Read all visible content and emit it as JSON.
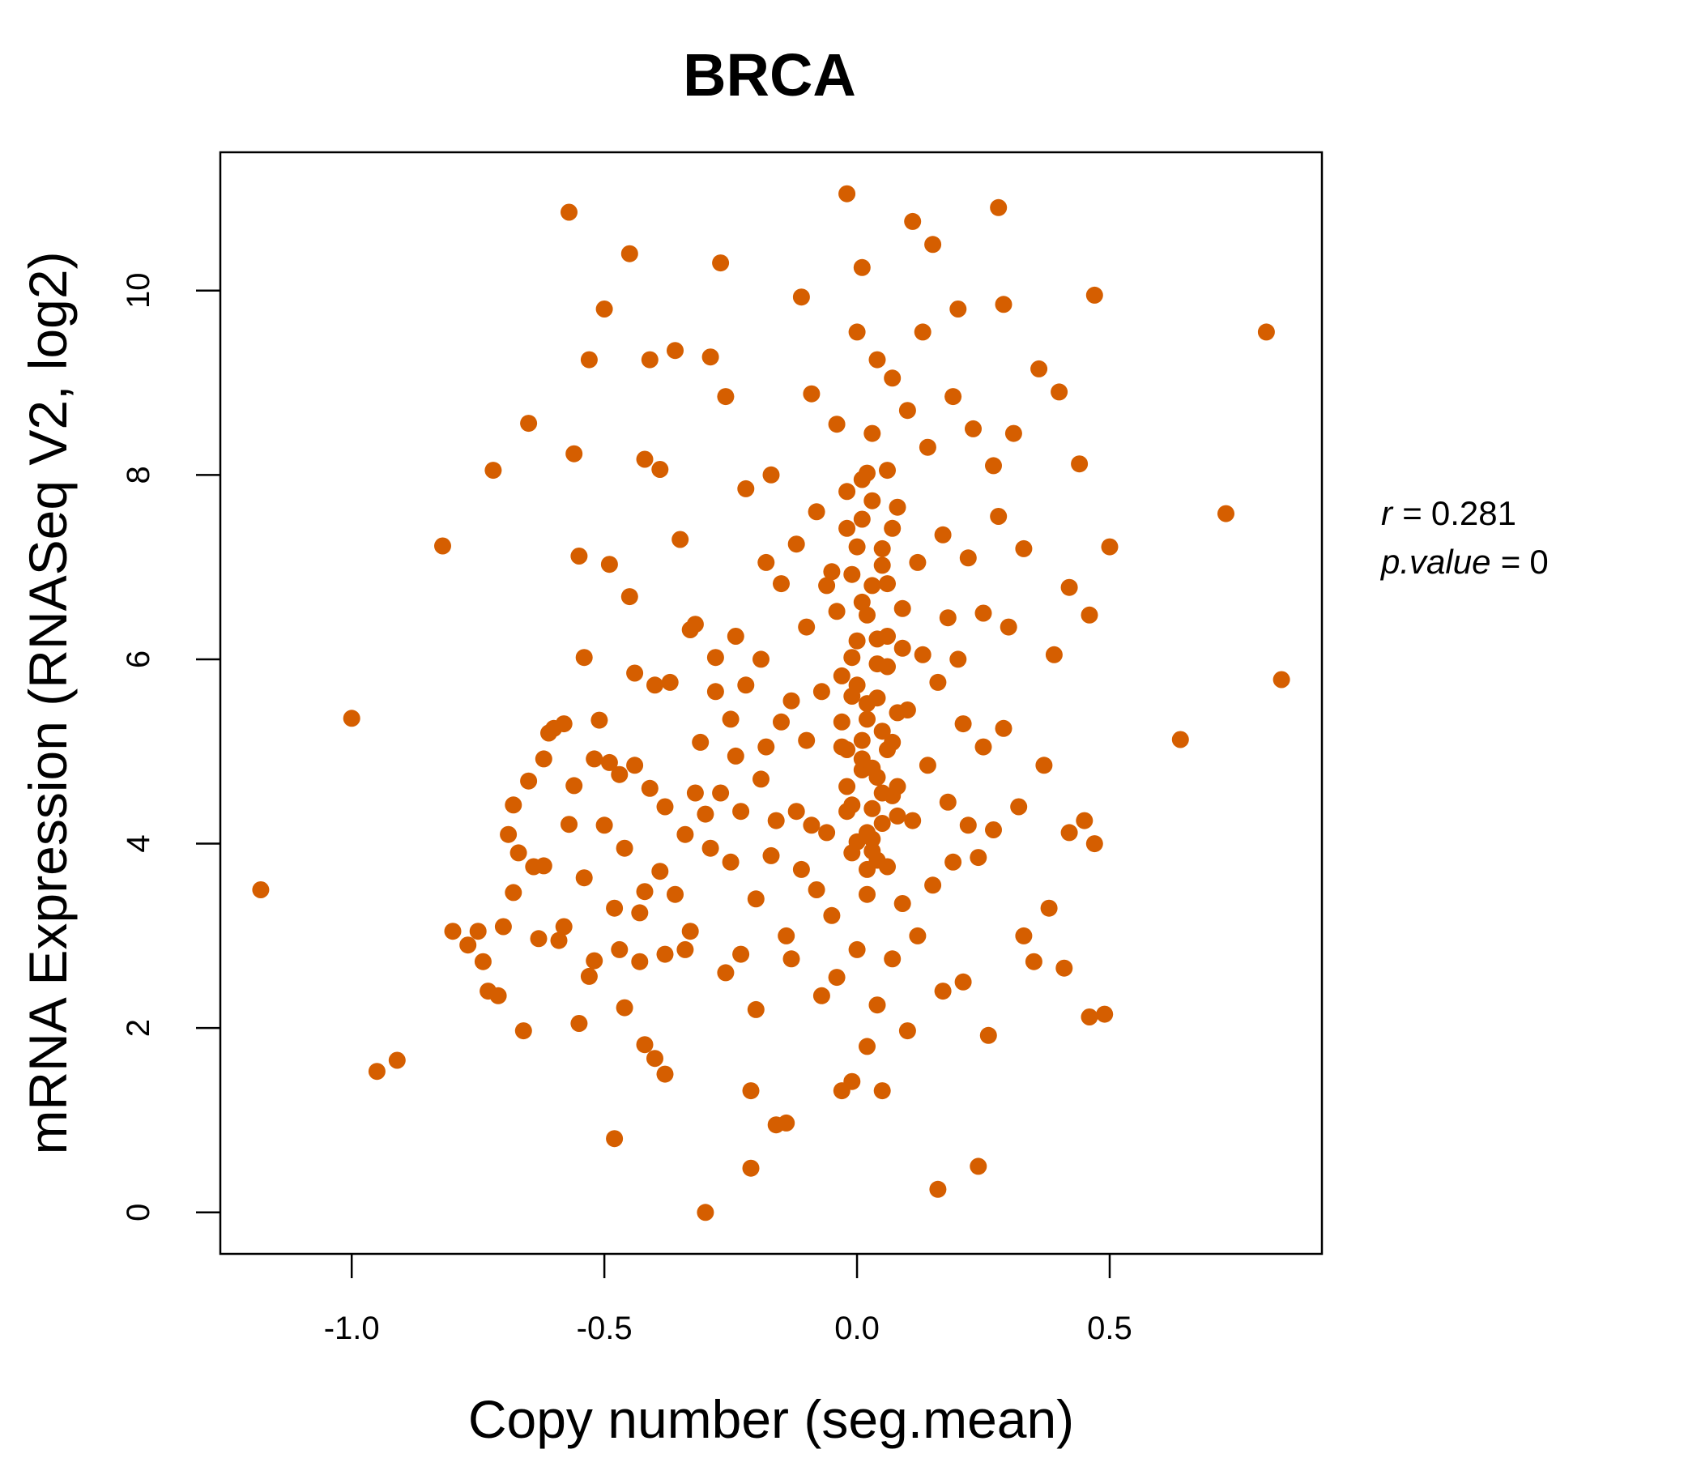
{
  "colors": {
    "points": "#D55E00",
    "title": "#D55E00",
    "axis": "#000000",
    "background": "#ffffff"
  },
  "chart_data": {
    "type": "scatter",
    "title": "BRCA",
    "xlabel": "Copy number (seg.mean)",
    "ylabel": "mRNA Expression (RNASeq V2, log2)",
    "xlim": [
      -1.26,
      0.92
    ],
    "ylim": [
      -0.45,
      11.5
    ],
    "xticks": [
      -1.0,
      -0.5,
      0.0,
      0.5
    ],
    "xtick_labels": [
      "-1.0",
      "-0.5",
      "0.0",
      "0.5"
    ],
    "yticks": [
      0,
      2,
      4,
      6,
      8,
      10
    ],
    "ytick_labels": [
      "0",
      "2",
      "4",
      "6",
      "8",
      "10"
    ],
    "grid": false,
    "legend": "none",
    "stats": {
      "r_label": "r",
      "r_value": "0.281",
      "p_label": "p.value",
      "p_value": "0"
    },
    "series": [
      {
        "points": [
          [
            -1.18,
            3.5
          ],
          [
            -1.0,
            5.36
          ],
          [
            -0.95,
            1.53
          ],
          [
            -0.91,
            1.65
          ],
          [
            -0.82,
            7.23
          ],
          [
            -0.8,
            3.05
          ],
          [
            -0.77,
            2.9
          ],
          [
            -0.75,
            3.05
          ],
          [
            -0.74,
            2.72
          ],
          [
            -0.73,
            2.4
          ],
          [
            -0.72,
            8.05
          ],
          [
            -0.71,
            2.35
          ],
          [
            -0.7,
            3.1
          ],
          [
            -0.69,
            4.1
          ],
          [
            -0.68,
            3.47
          ],
          [
            -0.68,
            4.42
          ],
          [
            -0.67,
            3.9
          ],
          [
            -0.66,
            1.97
          ],
          [
            -0.65,
            4.68
          ],
          [
            -0.65,
            8.56
          ],
          [
            -0.64,
            3.75
          ],
          [
            -0.63,
            2.97
          ],
          [
            -0.62,
            3.76
          ],
          [
            -0.62,
            4.92
          ],
          [
            -0.61,
            5.2
          ],
          [
            -0.6,
            5.25
          ],
          [
            -0.59,
            2.95
          ],
          [
            -0.58,
            3.1
          ],
          [
            -0.58,
            5.3
          ],
          [
            -0.57,
            4.21
          ],
          [
            -0.57,
            10.85
          ],
          [
            -0.56,
            8.23
          ],
          [
            -0.56,
            4.63
          ],
          [
            -0.55,
            7.12
          ],
          [
            -0.55,
            2.05
          ],
          [
            -0.54,
            3.63
          ],
          [
            -0.54,
            6.02
          ],
          [
            -0.53,
            9.25
          ],
          [
            -0.53,
            2.56
          ],
          [
            -0.52,
            2.73
          ],
          [
            -0.52,
            4.92
          ],
          [
            -0.51,
            5.34
          ],
          [
            -0.5,
            9.8
          ],
          [
            -0.5,
            4.2
          ],
          [
            -0.49,
            4.88
          ],
          [
            -0.49,
            7.03
          ],
          [
            -0.48,
            3.3
          ],
          [
            -0.48,
            0.8
          ],
          [
            -0.47,
            4.75
          ],
          [
            -0.47,
            2.85
          ],
          [
            -0.46,
            2.22
          ],
          [
            -0.46,
            3.95
          ],
          [
            -0.45,
            6.68
          ],
          [
            -0.45,
            10.4
          ],
          [
            -0.44,
            5.85
          ],
          [
            -0.44,
            4.85
          ],
          [
            -0.43,
            3.25
          ],
          [
            -0.43,
            2.72
          ],
          [
            -0.42,
            1.82
          ],
          [
            -0.42,
            3.48
          ],
          [
            -0.42,
            8.17
          ],
          [
            -0.41,
            9.25
          ],
          [
            -0.41,
            4.6
          ],
          [
            -0.4,
            5.72
          ],
          [
            -0.4,
            1.67
          ],
          [
            -0.39,
            3.7
          ],
          [
            -0.39,
            8.06
          ],
          [
            -0.38,
            1.5
          ],
          [
            -0.38,
            2.8
          ],
          [
            -0.38,
            4.4
          ],
          [
            -0.37,
            5.75
          ],
          [
            -0.36,
            9.35
          ],
          [
            -0.36,
            3.45
          ],
          [
            -0.35,
            7.3
          ],
          [
            -0.34,
            4.1
          ],
          [
            -0.34,
            2.85
          ],
          [
            -0.33,
            6.32
          ],
          [
            -0.33,
            3.05
          ],
          [
            -0.32,
            4.55
          ],
          [
            -0.32,
            6.38
          ],
          [
            -0.31,
            5.1
          ],
          [
            -0.3,
            0.0
          ],
          [
            -0.3,
            4.32
          ],
          [
            -0.29,
            9.28
          ],
          [
            -0.29,
            3.95
          ],
          [
            -0.28,
            6.02
          ],
          [
            -0.28,
            5.65
          ],
          [
            -0.27,
            10.3
          ],
          [
            -0.27,
            4.55
          ],
          [
            -0.26,
            8.85
          ],
          [
            -0.26,
            2.6
          ],
          [
            -0.25,
            3.8
          ],
          [
            -0.25,
            5.35
          ],
          [
            -0.24,
            6.25
          ],
          [
            -0.24,
            4.95
          ],
          [
            -0.23,
            2.8
          ],
          [
            -0.23,
            4.35
          ],
          [
            -0.22,
            7.85
          ],
          [
            -0.22,
            5.72
          ],
          [
            -0.21,
            1.32
          ],
          [
            -0.21,
            0.48
          ],
          [
            -0.2,
            3.4
          ],
          [
            -0.2,
            2.2
          ],
          [
            -0.19,
            4.7
          ],
          [
            -0.19,
            6.0
          ],
          [
            -0.18,
            5.05
          ],
          [
            -0.18,
            7.05
          ],
          [
            -0.17,
            8.0
          ],
          [
            -0.17,
            3.87
          ],
          [
            -0.16,
            0.95
          ],
          [
            -0.16,
            4.25
          ],
          [
            -0.15,
            5.32
          ],
          [
            -0.15,
            6.82
          ],
          [
            -0.14,
            0.97
          ],
          [
            -0.14,
            3.0
          ],
          [
            -0.13,
            2.75
          ],
          [
            -0.13,
            5.55
          ],
          [
            -0.12,
            7.25
          ],
          [
            -0.12,
            4.35
          ],
          [
            -0.11,
            9.93
          ],
          [
            -0.11,
            3.72
          ],
          [
            -0.1,
            6.35
          ],
          [
            -0.1,
            5.12
          ],
          [
            -0.09,
            8.88
          ],
          [
            -0.09,
            4.2
          ],
          [
            -0.08,
            7.6
          ],
          [
            -0.08,
            3.5
          ],
          [
            -0.07,
            2.35
          ],
          [
            -0.07,
            5.65
          ],
          [
            -0.06,
            6.8
          ],
          [
            -0.06,
            4.12
          ],
          [
            -0.05,
            3.22
          ],
          [
            -0.05,
            6.95
          ],
          [
            -0.04,
            8.55
          ],
          [
            -0.04,
            2.55
          ],
          [
            -0.03,
            5.05
          ],
          [
            -0.03,
            1.32
          ],
          [
            -0.02,
            7.42
          ],
          [
            -0.02,
            4.35
          ],
          [
            -0.02,
            11.05
          ],
          [
            -0.01,
            1.42
          ],
          [
            -0.01,
            5.6
          ],
          [
            -0.01,
            3.9
          ],
          [
            0.0,
            6.2
          ],
          [
            0.0,
            9.55
          ],
          [
            0.0,
            2.85
          ],
          [
            0.01,
            4.8
          ],
          [
            0.01,
            7.95
          ],
          [
            0.01,
            10.25
          ],
          [
            0.02,
            1.8
          ],
          [
            0.02,
            5.35
          ],
          [
            0.02,
            3.45
          ],
          [
            0.03,
            6.8
          ],
          [
            0.03,
            8.45
          ],
          [
            0.03,
            4.05
          ],
          [
            0.04,
            2.25
          ],
          [
            0.04,
            9.25
          ],
          [
            0.04,
            5.95
          ],
          [
            0.05,
            4.55
          ],
          [
            0.05,
            7.2
          ],
          [
            0.05,
            1.32
          ],
          [
            0.06,
            3.75
          ],
          [
            0.06,
            8.05
          ],
          [
            0.06,
            6.25
          ],
          [
            0.07,
            5.1
          ],
          [
            0.07,
            9.05
          ],
          [
            0.07,
            2.75
          ],
          [
            0.08,
            4.3
          ],
          [
            0.08,
            7.65
          ],
          [
            0.09,
            6.55
          ],
          [
            0.09,
            3.35
          ],
          [
            0.1,
            8.7
          ],
          [
            0.1,
            5.45
          ],
          [
            0.1,
            1.97
          ],
          [
            0.11,
            10.75
          ],
          [
            0.11,
            4.25
          ],
          [
            0.12,
            7.05
          ],
          [
            0.12,
            3.0
          ],
          [
            0.13,
            6.05
          ],
          [
            0.13,
            9.55
          ],
          [
            0.14,
            4.85
          ],
          [
            0.14,
            8.3
          ],
          [
            0.15,
            3.55
          ],
          [
            0.15,
            10.5
          ],
          [
            0.16,
            5.75
          ],
          [
            0.16,
            0.25
          ],
          [
            0.17,
            7.35
          ],
          [
            0.17,
            2.4
          ],
          [
            0.18,
            6.45
          ],
          [
            0.18,
            4.45
          ],
          [
            0.19,
            8.85
          ],
          [
            0.19,
            3.8
          ],
          [
            0.2,
            6.0
          ],
          [
            0.2,
            9.8
          ],
          [
            0.21,
            5.3
          ],
          [
            0.21,
            2.5
          ],
          [
            0.22,
            7.1
          ],
          [
            0.22,
            4.2
          ],
          [
            0.23,
            8.5
          ],
          [
            0.24,
            3.85
          ],
          [
            0.24,
            0.5
          ],
          [
            0.25,
            6.5
          ],
          [
            0.25,
            5.05
          ],
          [
            0.26,
            1.92
          ],
          [
            0.27,
            8.1
          ],
          [
            0.27,
            4.15
          ],
          [
            0.28,
            7.55
          ],
          [
            0.28,
            10.9
          ],
          [
            0.29,
            5.25
          ],
          [
            0.29,
            9.85
          ],
          [
            0.3,
            6.35
          ],
          [
            0.31,
            8.45
          ],
          [
            0.32,
            4.4
          ],
          [
            0.33,
            7.2
          ],
          [
            0.33,
            3.0
          ],
          [
            0.35,
            2.72
          ],
          [
            0.36,
            9.15
          ],
          [
            0.37,
            4.85
          ],
          [
            0.38,
            3.3
          ],
          [
            0.39,
            6.05
          ],
          [
            0.4,
            8.9
          ],
          [
            0.41,
            2.65
          ],
          [
            0.42,
            6.78
          ],
          [
            0.42,
            4.12
          ],
          [
            0.44,
            8.12
          ],
          [
            0.45,
            4.25
          ],
          [
            0.46,
            6.48
          ],
          [
            0.46,
            2.12
          ],
          [
            0.47,
            4.0
          ],
          [
            0.47,
            9.95
          ],
          [
            0.49,
            2.15
          ],
          [
            0.5,
            7.22
          ],
          [
            0.64,
            5.13
          ],
          [
            0.73,
            7.58
          ],
          [
            0.81,
            9.55
          ],
          [
            0.84,
            5.78
          ],
          [
            -0.02,
            4.62
          ],
          [
            0.01,
            5.12
          ],
          [
            0.03,
            4.38
          ],
          [
            -0.01,
            6.02
          ],
          [
            0.04,
            5.58
          ],
          [
            0.02,
            6.48
          ],
          [
            0.0,
            4.02
          ],
          [
            0.05,
            7.02
          ],
          [
            -0.03,
            5.32
          ],
          [
            0.06,
            5.92
          ],
          [
            0.01,
            7.52
          ],
          [
            0.03,
            4.82
          ],
          [
            -0.01,
            6.92
          ],
          [
            0.02,
            3.72
          ],
          [
            0.07,
            4.52
          ],
          [
            0.04,
            6.22
          ],
          [
            -0.02,
            5.02
          ],
          [
            0.0,
            7.22
          ],
          [
            0.05,
            4.22
          ],
          [
            0.08,
            5.42
          ],
          [
            0.02,
            8.02
          ],
          [
            -0.04,
            6.52
          ],
          [
            0.03,
            3.92
          ],
          [
            0.06,
            6.82
          ],
          [
            0.01,
            4.92
          ],
          [
            0.09,
            6.12
          ],
          [
            -0.02,
            7.82
          ],
          [
            0.04,
            4.72
          ],
          [
            0.0,
            5.72
          ],
          [
            0.07,
            7.42
          ],
          [
            0.02,
            4.12
          ],
          [
            0.05,
            5.22
          ],
          [
            -0.01,
            4.42
          ],
          [
            0.03,
            7.72
          ],
          [
            0.08,
            4.62
          ],
          [
            0.01,
            6.62
          ],
          [
            0.04,
            3.82
          ],
          [
            -0.03,
            5.82
          ],
          [
            0.06,
            5.02
          ],
          [
            0.02,
            5.52
          ]
        ]
      }
    ]
  }
}
